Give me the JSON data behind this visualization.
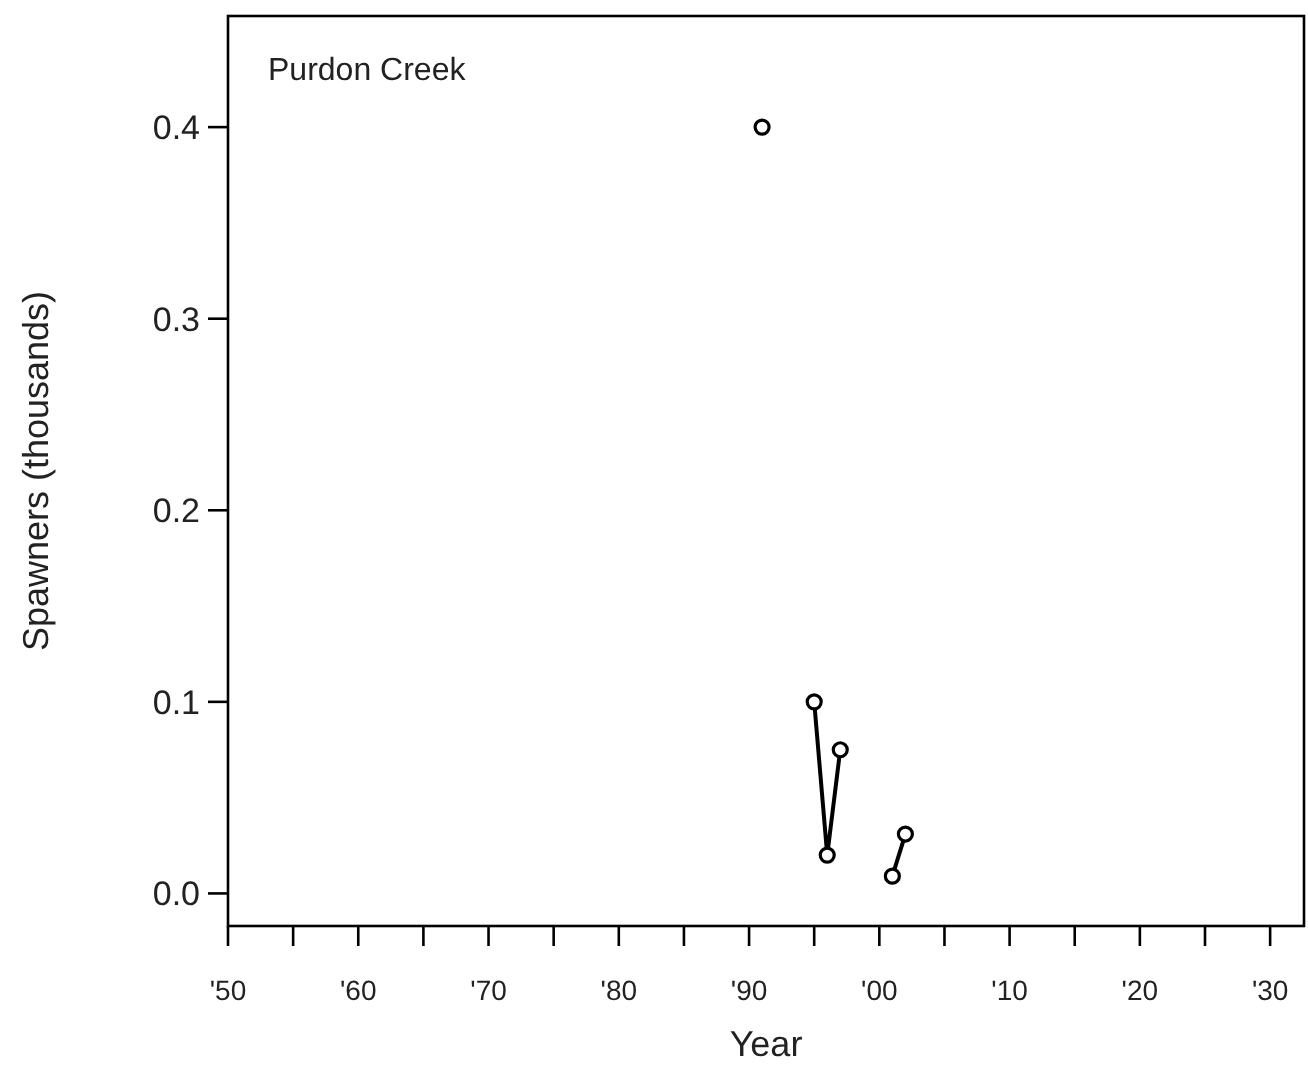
{
  "chart_data": {
    "type": "line",
    "title": "Purdon Creek",
    "xlabel": "Year",
    "ylabel": "Spawners (thousands)",
    "series": [
      {
        "color": "#000000",
        "x": [
          1991
        ],
        "values": [
          0.4
        ]
      },
      {
        "color": "#000000",
        "x": [
          1995,
          1996,
          1997
        ],
        "values": [
          0.1,
          0.02,
          0.075
        ]
      },
      {
        "color": "#000000",
        "x": [
          2001,
          2002
        ],
        "values": [
          0.009,
          0.031
        ]
      }
    ],
    "marker": "circle",
    "line_style": "solid",
    "grid": false,
    "xlim": [
      1950,
      2032.6
    ],
    "ylim": [
      -0.017,
      0.458
    ],
    "xticks": [
      {
        "value": 1950,
        "label": "'50"
      },
      {
        "value": 1955,
        "label": null
      },
      {
        "value": 1960,
        "label": "'60"
      },
      {
        "value": 1965,
        "label": null
      },
      {
        "value": 1970,
        "label": "'70"
      },
      {
        "value": 1975,
        "label": null
      },
      {
        "value": 1980,
        "label": "'80"
      },
      {
        "value": 1985,
        "label": null
      },
      {
        "value": 1990,
        "label": "'90"
      },
      {
        "value": 1995,
        "label": null
      },
      {
        "value": 2000,
        "label": "'00"
      },
      {
        "value": 2005,
        "label": null
      },
      {
        "value": 2010,
        "label": "'10"
      },
      {
        "value": 2015,
        "label": null
      },
      {
        "value": 2020,
        "label": "'20"
      },
      {
        "value": 2025,
        "label": null
      },
      {
        "value": 2030,
        "label": "'30"
      }
    ],
    "yticks": [
      {
        "value": 0,
        "label": "0.0"
      },
      0.1,
      0.2,
      0.3,
      0.4
    ]
  }
}
